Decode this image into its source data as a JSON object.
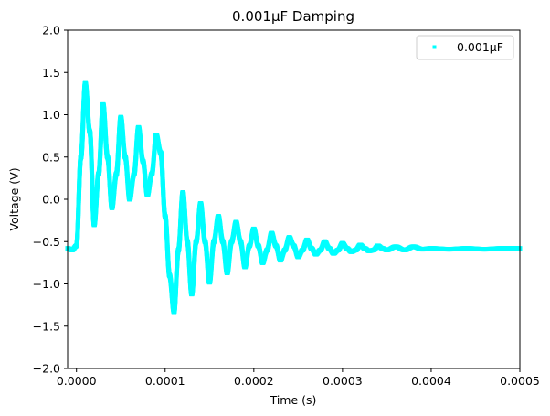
{
  "chart_data": {
    "type": "scatter",
    "title": "0.001μF Damping",
    "xlabel": "Time (s)",
    "ylabel": "Voltage (V)",
    "xlim": [
      -1e-05,
      0.0005
    ],
    "ylim": [
      -2.0,
      2.0
    ],
    "xticks": [
      0.0,
      0.0001,
      0.0002,
      0.0003,
      0.0004,
      0.0005
    ],
    "xtick_labels": [
      "0.0000",
      "0.0001",
      "0.0002",
      "0.0003",
      "0.0004",
      "0.0005"
    ],
    "yticks": [
      -2.0,
      -1.5,
      -1.0,
      -0.5,
      0.0,
      0.5,
      1.0,
      1.5,
      2.0
    ],
    "ytick_labels": [
      "−2.0",
      "−1.5",
      "−1.0",
      "−0.5",
      "0.0",
      "0.5",
      "1.0",
      "1.5",
      "2.0"
    ],
    "grid": false,
    "legend_position": "top-right",
    "series": [
      {
        "name": "0.001μF",
        "color": "#00ffff",
        "baseline": -0.58,
        "points": [
          [
            -1e-05,
            -0.58
          ],
          [
            -5e-06,
            -0.6
          ],
          [
            0.0,
            -0.55
          ],
          [
            5e-06,
            0.5
          ],
          [
            1e-05,
            1.37
          ],
          [
            1.5e-05,
            0.8
          ],
          [
            2e-05,
            -0.3
          ],
          [
            2.5e-05,
            0.3
          ],
          [
            3e-05,
            1.12
          ],
          [
            3.5e-05,
            0.5
          ],
          [
            4e-05,
            -0.1
          ],
          [
            4.5e-05,
            0.3
          ],
          [
            5e-05,
            0.97
          ],
          [
            5.5e-05,
            0.5
          ],
          [
            6e-05,
            0.0
          ],
          [
            6.5e-05,
            0.3
          ],
          [
            7e-05,
            0.85
          ],
          [
            7.5e-05,
            0.45
          ],
          [
            8e-05,
            0.05
          ],
          [
            8.5e-05,
            0.3
          ],
          [
            9e-05,
            0.76
          ],
          [
            9.5e-05,
            0.55
          ],
          [
            0.0001,
            -0.2
          ],
          [
            0.000105,
            -0.9
          ],
          [
            0.00011,
            -1.33
          ],
          [
            0.000115,
            -0.6
          ],
          [
            0.00012,
            0.08
          ],
          [
            0.000125,
            -0.5
          ],
          [
            0.00013,
            -1.12
          ],
          [
            0.000135,
            -0.5
          ],
          [
            0.00014,
            -0.05
          ],
          [
            0.000145,
            -0.5
          ],
          [
            0.00015,
            -0.98
          ],
          [
            0.000155,
            -0.5
          ],
          [
            0.00016,
            -0.2
          ],
          [
            0.000165,
            -0.5
          ],
          [
            0.00017,
            -0.87
          ],
          [
            0.000175,
            -0.5
          ],
          [
            0.00018,
            -0.27
          ],
          [
            0.000185,
            -0.5
          ],
          [
            0.00019,
            -0.8
          ],
          [
            0.000195,
            -0.55
          ],
          [
            0.0002,
            -0.35
          ],
          [
            0.000205,
            -0.55
          ],
          [
            0.00021,
            -0.75
          ],
          [
            0.000215,
            -0.6
          ],
          [
            0.00022,
            -0.4
          ],
          [
            0.000225,
            -0.55
          ],
          [
            0.00023,
            -0.72
          ],
          [
            0.000235,
            -0.6
          ],
          [
            0.00024,
            -0.45
          ],
          [
            0.000245,
            -0.55
          ],
          [
            0.00025,
            -0.68
          ],
          [
            0.000255,
            -0.6
          ],
          [
            0.00026,
            -0.48
          ],
          [
            0.000265,
            -0.58
          ],
          [
            0.00027,
            -0.65
          ],
          [
            0.000275,
            -0.6
          ],
          [
            0.00028,
            -0.5
          ],
          [
            0.000285,
            -0.58
          ],
          [
            0.00029,
            -0.64
          ],
          [
            0.000295,
            -0.6
          ],
          [
            0.0003,
            -0.52
          ],
          [
            0.000305,
            -0.58
          ],
          [
            0.00031,
            -0.62
          ],
          [
            0.000315,
            -0.6
          ],
          [
            0.00032,
            -0.54
          ],
          [
            0.000325,
            -0.58
          ],
          [
            0.00033,
            -0.61
          ],
          [
            0.000335,
            -0.6
          ],
          [
            0.00034,
            -0.55
          ],
          [
            0.000345,
            -0.58
          ],
          [
            0.00035,
            -0.6
          ],
          [
            0.00036,
            -0.56
          ],
          [
            0.00037,
            -0.6
          ],
          [
            0.00038,
            -0.56
          ],
          [
            0.00039,
            -0.59
          ],
          [
            0.0004,
            -0.58
          ],
          [
            0.00042,
            -0.59
          ],
          [
            0.00044,
            -0.58
          ],
          [
            0.00046,
            -0.59
          ],
          [
            0.00048,
            -0.58
          ],
          [
            0.0005,
            -0.58
          ]
        ],
        "envelope_note": ""
      }
    ]
  }
}
